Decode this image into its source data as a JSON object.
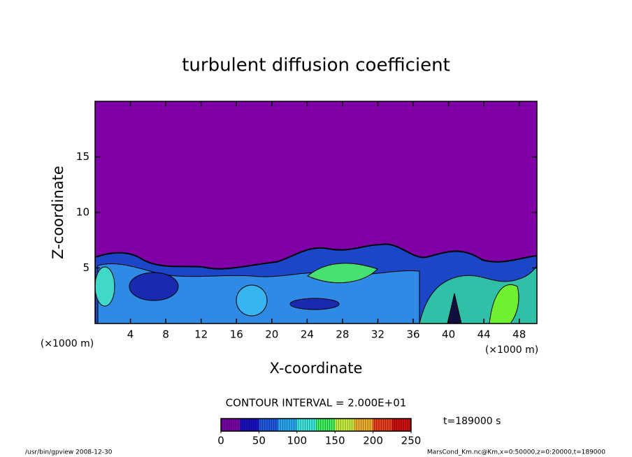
{
  "chart_data": {
    "type": "contour",
    "title": "turbulent diffusion coefficient",
    "x_label": "X-coordinate",
    "y_label": "Z-coordinate",
    "x_unit": "(×1000 m)",
    "y_unit": "(×1000 m)",
    "xlim": [
      0,
      50
    ],
    "xticks": [
      4,
      8,
      12,
      16,
      20,
      24,
      28,
      32,
      36,
      40,
      44,
      48
    ],
    "ylim": [
      0,
      20
    ],
    "yticks": [
      5,
      10,
      15
    ],
    "contour_interval": "CONTOUR INTERVAL = 2.000E+01",
    "time_label": "t=189000 s",
    "colorbar": {
      "lim": [
        0,
        250
      ],
      "ticks": [
        0,
        50,
        100,
        150,
        200,
        250
      ],
      "colors": [
        "#7a00a8",
        "#1a10c0",
        "#1f5ae0",
        "#28a8f0",
        "#40e8e0",
        "#40f060",
        "#c8f040",
        "#f0b030",
        "#e84020",
        "#d01010"
      ]
    },
    "footer_left": "/usr/bin/gpview  2008-12-30",
    "footer_right": "MarsCond_Km.nc@Km,x=0:50000,z=0:20000,t=189000"
  }
}
